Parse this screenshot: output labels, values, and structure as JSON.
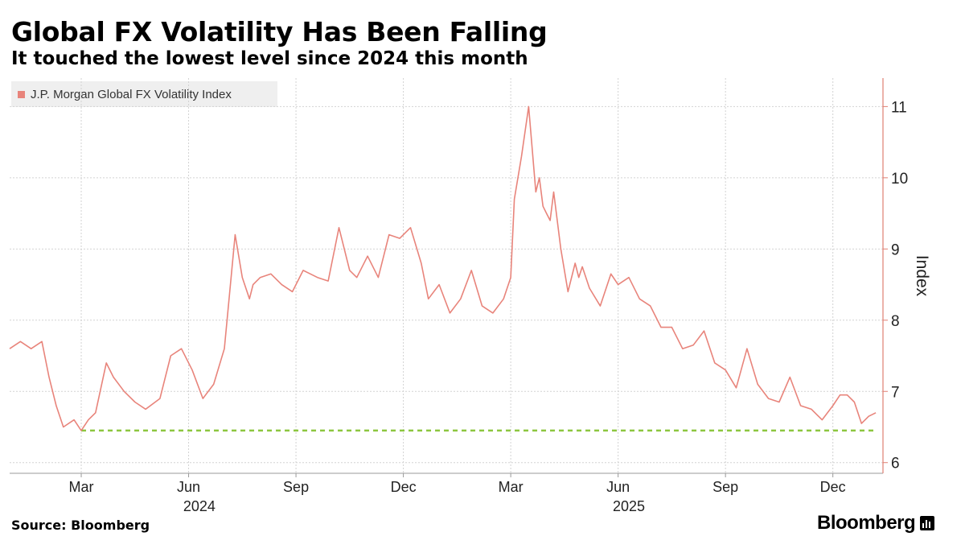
{
  "header": {
    "title": "Global FX Volatility Has Been Falling",
    "subtitle": "It touched the lowest level since 2024 this month"
  },
  "legend": {
    "label": "J.P. Morgan Global FX Volatility Index",
    "color": "#e8847b"
  },
  "footer": {
    "source": "Source: Bloomberg",
    "brand": "Bloomberg"
  },
  "colors": {
    "series": "#e8847b",
    "reference": "#8cc63f",
    "grid": "#d2d2d2",
    "axis": "#e07f72"
  },
  "chart_data": {
    "type": "line",
    "title": "Global FX Volatility Has Been Falling",
    "subtitle": "It touched the lowest level since 2024 this month",
    "ylabel": "Index",
    "xlabel": "",
    "ylim": [
      5.85,
      11.4
    ],
    "xlim": [
      0,
      24.4
    ],
    "yticks": [
      6,
      7,
      8,
      9,
      10,
      11
    ],
    "grid": true,
    "legend_position": "top-left",
    "x_unit": "months since Jan 2024",
    "xticks": [
      {
        "x": 2.0,
        "label": "Mar"
      },
      {
        "x": 5.0,
        "label": "Jun"
      },
      {
        "x": 8.0,
        "label": "Sep"
      },
      {
        "x": 11.0,
        "label": "Dec"
      },
      {
        "x": 14.0,
        "label": "Mar"
      },
      {
        "x": 17.0,
        "label": "Jun"
      },
      {
        "x": 20.0,
        "label": "Sep"
      },
      {
        "x": 23.0,
        "label": "Dec"
      }
    ],
    "year_labels": [
      {
        "x": 5.3,
        "label": "2024"
      },
      {
        "x": 17.3,
        "label": "2025"
      }
    ],
    "reference_line": {
      "name": "Lowest level since 2024",
      "y": 6.45,
      "x_start": 2.0,
      "x_end": 24.2
    },
    "series": [
      {
        "name": "J.P. Morgan Global FX Volatility Index",
        "x": [
          0.0,
          0.3,
          0.6,
          0.9,
          1.1,
          1.3,
          1.5,
          1.8,
          2.0,
          2.2,
          2.4,
          2.7,
          2.9,
          3.2,
          3.5,
          3.8,
          4.2,
          4.5,
          4.8,
          5.1,
          5.4,
          5.7,
          6.0,
          6.3,
          6.5,
          6.7,
          6.8,
          7.0,
          7.3,
          7.6,
          7.9,
          8.2,
          8.6,
          8.9,
          9.2,
          9.5,
          9.7,
          10.0,
          10.3,
          10.6,
          10.9,
          11.2,
          11.5,
          11.7,
          12.0,
          12.3,
          12.6,
          12.9,
          13.2,
          13.5,
          13.8,
          14.0,
          14.1,
          14.3,
          14.5,
          14.7,
          14.8,
          14.9,
          15.0,
          15.1,
          15.2,
          15.4,
          15.6,
          15.8,
          15.9,
          16.0,
          16.2,
          16.5,
          16.8,
          17.0,
          17.3,
          17.6,
          17.9,
          18.2,
          18.5,
          18.8,
          19.1,
          19.4,
          19.7,
          20.0,
          20.3,
          20.6,
          20.9,
          21.2,
          21.5,
          21.8,
          22.1,
          22.4,
          22.7,
          23.0,
          23.2,
          23.4,
          23.6,
          23.8,
          24.0,
          24.2
        ],
        "values": [
          7.6,
          7.7,
          7.6,
          7.7,
          7.2,
          6.8,
          6.5,
          6.6,
          6.45,
          6.6,
          6.7,
          7.4,
          7.2,
          7.0,
          6.85,
          6.75,
          6.9,
          7.5,
          7.6,
          7.3,
          6.9,
          7.1,
          7.6,
          9.2,
          8.6,
          8.3,
          8.5,
          8.6,
          8.65,
          8.5,
          8.4,
          8.7,
          8.6,
          8.55,
          9.3,
          8.7,
          8.6,
          8.9,
          8.6,
          9.2,
          9.15,
          9.3,
          8.8,
          8.3,
          8.5,
          8.1,
          8.3,
          8.7,
          8.2,
          8.1,
          8.3,
          8.6,
          9.7,
          10.3,
          11.0,
          9.8,
          10.0,
          9.6,
          9.5,
          9.4,
          9.8,
          9.0,
          8.4,
          8.8,
          8.6,
          8.75,
          8.45,
          8.2,
          8.65,
          8.5,
          8.6,
          8.3,
          8.2,
          7.9,
          7.9,
          7.6,
          7.65,
          7.85,
          7.4,
          7.3,
          7.05,
          7.6,
          7.1,
          6.9,
          6.85,
          7.2,
          6.8,
          6.75,
          6.6,
          6.8,
          6.95,
          6.95,
          6.85,
          6.55,
          6.65,
          6.7
        ]
      }
    ]
  }
}
